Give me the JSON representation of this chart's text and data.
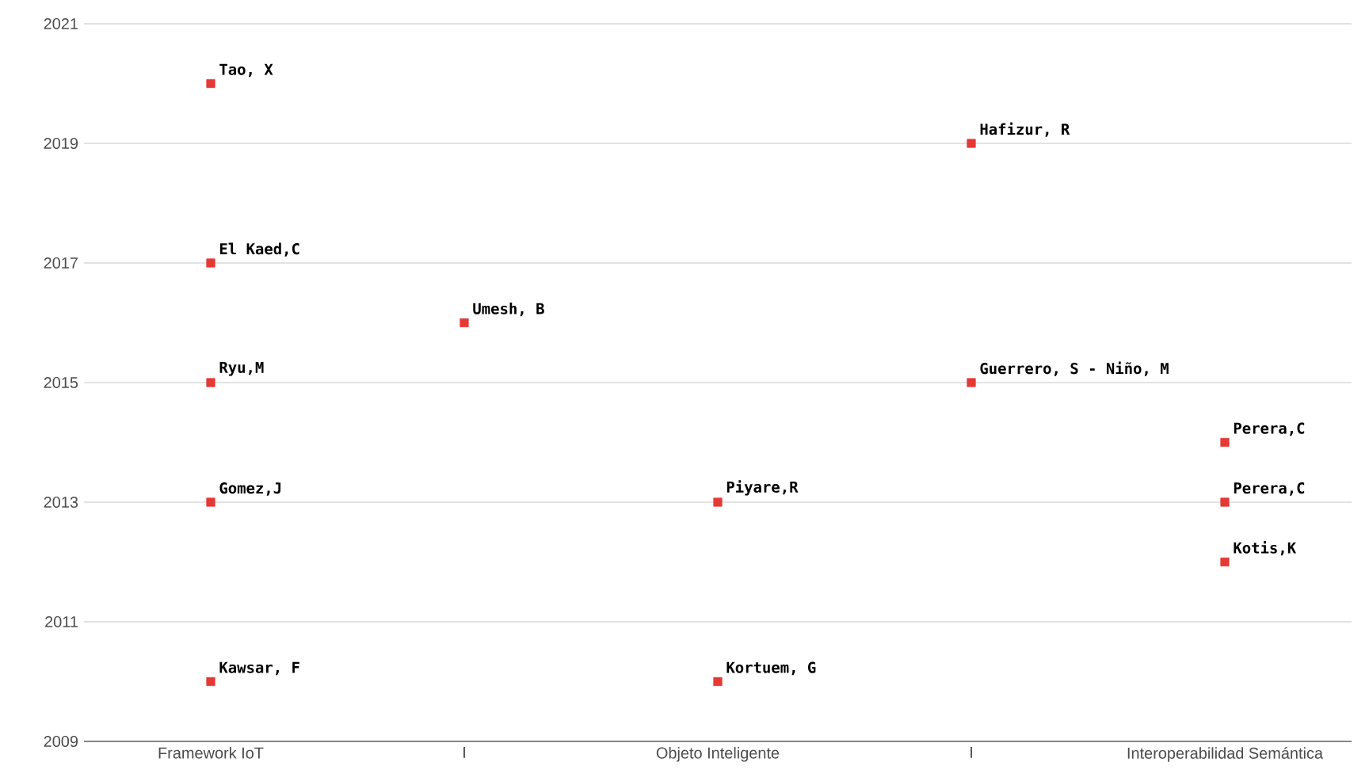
{
  "chart_data": {
    "type": "scatter",
    "categories": [
      "Framework IoT",
      "I",
      "Objeto Inteligente",
      "I",
      "Interoperabilidad Semántica"
    ],
    "ylim": [
      2009,
      2021
    ],
    "yticks": [
      2009,
      2011,
      2013,
      2015,
      2017,
      2019,
      2021
    ],
    "grid": "y",
    "marker": "square",
    "series": [
      {
        "color": "#e53935",
        "values": [
          2020,
          2016,
          2013,
          2019,
          2014
        ],
        "value_labels": [
          "Tao, X",
          "Umesh, B",
          "Piyare,R",
          "Hafizur, R",
          "Perera,C"
        ]
      },
      {
        "color": "#e53935",
        "values": [
          2017,
          null,
          2010,
          2015,
          2013
        ],
        "value_labels": [
          "El Kaed,C",
          null,
          "Kortuem, G",
          "Guerrero, S - Niño, M",
          "Perera,C"
        ]
      },
      {
        "color": "#e53935",
        "values": [
          2015,
          null,
          null,
          null,
          2012
        ],
        "value_labels": [
          "Ryu,M",
          null,
          null,
          null,
          "Kotis,K"
        ]
      },
      {
        "color": "#e53935",
        "values": [
          2013,
          null,
          null,
          null,
          null
        ],
        "value_labels": [
          "Gomez,J",
          null,
          null,
          null,
          null
        ]
      },
      {
        "color": "#e53935",
        "values": [
          2010,
          null,
          null,
          null,
          null
        ],
        "value_labels": [
          "Kawsar, F",
          null,
          null,
          null,
          null
        ]
      }
    ]
  }
}
